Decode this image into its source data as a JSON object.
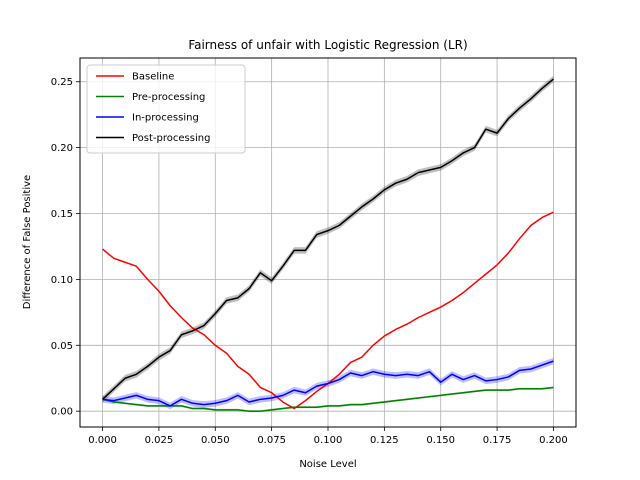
{
  "chart_data": {
    "type": "line",
    "title": "Fairness of unfair with Logistic Regression (LR)",
    "xlabel": "Noise Level",
    "ylabel": "Difference of False Positive",
    "xlim": [
      -0.01,
      0.21
    ],
    "ylim": [
      -0.012,
      0.268
    ],
    "xticks": [
      0.0,
      0.025,
      0.05,
      0.075,
      0.1,
      0.125,
      0.15,
      0.175,
      0.2
    ],
    "xtick_labels": [
      "0.000",
      "0.025",
      "0.050",
      "0.075",
      "0.100",
      "0.125",
      "0.150",
      "0.175",
      "0.200"
    ],
    "yticks": [
      0.0,
      0.05,
      0.1,
      0.15,
      0.2,
      0.25
    ],
    "ytick_labels": [
      "0.00",
      "0.05",
      "0.10",
      "0.15",
      "0.20",
      "0.25"
    ],
    "grid": true,
    "legend_position": "top-left",
    "x": [
      0.0,
      0.005,
      0.01,
      0.015,
      0.02,
      0.025,
      0.03,
      0.035,
      0.04,
      0.045,
      0.05,
      0.055,
      0.06,
      0.065,
      0.07,
      0.075,
      0.08,
      0.085,
      0.09,
      0.095,
      0.1,
      0.105,
      0.11,
      0.115,
      0.12,
      0.125,
      0.13,
      0.135,
      0.14,
      0.145,
      0.15,
      0.155,
      0.16,
      0.165,
      0.17,
      0.175,
      0.18,
      0.185,
      0.19,
      0.195,
      0.2
    ],
    "series": [
      {
        "name": "Baseline",
        "color": "#ff0000",
        "values": [
          0.123,
          0.116,
          0.113,
          0.11,
          0.1,
          0.091,
          0.08,
          0.071,
          0.063,
          0.058,
          0.05,
          0.044,
          0.034,
          0.028,
          0.018,
          0.014,
          0.007,
          0.002,
          0.008,
          0.015,
          0.021,
          0.028,
          0.037,
          0.041,
          0.05,
          0.057,
          0.062,
          0.066,
          0.071,
          0.075,
          0.079,
          0.084,
          0.09,
          0.097,
          0.104,
          0.111,
          0.12,
          0.131,
          0.141,
          0.147,
          0.151
        ],
        "band": 0
      },
      {
        "name": "Pre-processing",
        "color": "#008000",
        "values": [
          0.009,
          0.007,
          0.006,
          0.005,
          0.004,
          0.004,
          0.004,
          0.004,
          0.002,
          0.002,
          0.001,
          0.001,
          0.001,
          0.0,
          0.0,
          0.001,
          0.002,
          0.003,
          0.003,
          0.003,
          0.004,
          0.004,
          0.005,
          0.005,
          0.006,
          0.007,
          0.008,
          0.009,
          0.01,
          0.011,
          0.012,
          0.013,
          0.014,
          0.015,
          0.016,
          0.016,
          0.016,
          0.017,
          0.017,
          0.017,
          0.018
        ],
        "band": 0.0008
      },
      {
        "name": "In-processing",
        "color": "#0000ff",
        "values": [
          0.009,
          0.008,
          0.01,
          0.012,
          0.009,
          0.008,
          0.004,
          0.009,
          0.006,
          0.005,
          0.006,
          0.008,
          0.012,
          0.007,
          0.009,
          0.01,
          0.012,
          0.016,
          0.014,
          0.019,
          0.021,
          0.024,
          0.029,
          0.027,
          0.03,
          0.028,
          0.027,
          0.028,
          0.027,
          0.03,
          0.022,
          0.028,
          0.024,
          0.027,
          0.023,
          0.024,
          0.026,
          0.031,
          0.032,
          0.035,
          0.038
        ],
        "band": 0.0025
      },
      {
        "name": "Post-processing",
        "color": "#000000",
        "values": [
          0.009,
          0.017,
          0.025,
          0.028,
          0.034,
          0.041,
          0.046,
          0.058,
          0.061,
          0.065,
          0.074,
          0.084,
          0.086,
          0.093,
          0.105,
          0.099,
          0.11,
          0.122,
          0.122,
          0.134,
          0.137,
          0.141,
          0.148,
          0.155,
          0.161,
          0.168,
          0.173,
          0.176,
          0.181,
          0.183,
          0.185,
          0.19,
          0.196,
          0.2,
          0.214,
          0.211,
          0.222,
          0.23,
          0.237,
          0.245,
          0.252
        ],
        "band": 0.0025
      }
    ]
  }
}
